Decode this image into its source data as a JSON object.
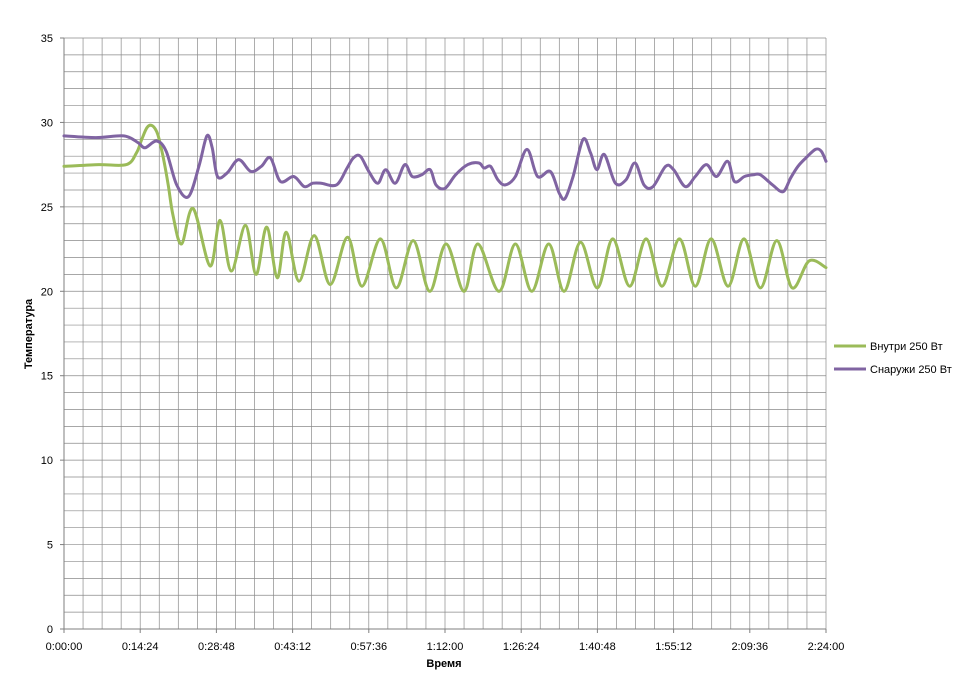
{
  "chart_data": {
    "type": "line",
    "xlabel": "Время",
    "ylabel": "Температура",
    "ylim": [
      0,
      35
    ],
    "yticks": [
      "0",
      "5",
      "10",
      "15",
      "20",
      "25",
      "30",
      "35"
    ],
    "xlim_minutes": [
      0,
      144
    ],
    "xticks": [
      "0:00:00",
      "0:14:24",
      "0:28:48",
      "0:43:12",
      "0:57:36",
      "1:12:00",
      "1:26:24",
      "1:40:48",
      "1:55:12",
      "2:09:36",
      "2:24:00"
    ],
    "grid": true,
    "legend_position": "right",
    "series": [
      {
        "name": "Внутри 250 Вт",
        "color": "#9bbb59",
        "x_minutes": [
          0,
          6.6,
          11.8,
          13.7,
          14.7,
          15.7,
          16.7,
          17.7,
          18.7,
          19.7,
          20.6,
          22.2,
          24.4,
          27.6,
          29.5,
          31.6,
          34.3,
          36.3,
          38.3,
          40.3,
          42.0,
          44.4,
          47.3,
          50.3,
          53.6,
          56.3,
          59.8,
          62.8,
          66.0,
          69.1,
          72.2,
          75.6,
          78.2,
          82.2,
          85.3,
          88.4,
          91.6,
          94.5,
          97.6,
          100.8,
          103.7,
          106.9,
          110.0,
          113.0,
          116.3,
          119.3,
          122.3,
          125.5,
          128.5,
          131.6,
          134.7,
          137.6,
          140.8,
          144
        ],
        "values": [
          27.4,
          27.5,
          27.5,
          28.2,
          29.0,
          29.7,
          29.8,
          29.3,
          28.0,
          26.3,
          24.5,
          22.8,
          24.9,
          21.5,
          24.2,
          21.2,
          23.9,
          21.0,
          23.8,
          20.8,
          23.5,
          20.6,
          23.3,
          20.4,
          23.2,
          20.3,
          23.1,
          20.2,
          23.0,
          20.0,
          22.8,
          20.0,
          22.8,
          20.0,
          22.8,
          20.0,
          22.8,
          20.0,
          22.9,
          20.2,
          23.1,
          20.3,
          23.1,
          20.3,
          23.1,
          20.3,
          23.1,
          20.3,
          23.1,
          20.2,
          23.0,
          20.2,
          21.8,
          21.4
        ]
      },
      {
        "name": "Снаружи 250 Вт",
        "color": "#8064a2",
        "x_minutes": [
          0,
          6.0,
          11.3,
          14.0,
          15.3,
          17.5,
          19.3,
          21.3,
          23.5,
          25.5,
          27.0,
          28.0,
          29.0,
          30.8,
          33.0,
          35.3,
          37.3,
          39.0,
          40.9,
          43.4,
          45.4,
          47.0,
          48.6,
          51.5,
          53.5,
          54.7,
          56.0,
          57.6,
          59.3,
          60.8,
          62.6,
          64.4,
          65.8,
          67.6,
          69.2,
          70.3,
          72.0,
          74.0,
          76.3,
          78.4,
          79.4,
          80.6,
          82.0,
          83.4,
          85.3,
          87.5,
          89.5,
          91.9,
          93.6,
          94.7,
          96.2,
          98.1,
          99.5,
          100.7,
          102.1,
          104.2,
          106.2,
          107.9,
          109.6,
          111.3,
          113.7,
          115.2,
          117.4,
          119.3,
          121.4,
          123.3,
          125.4,
          126.7,
          128.6,
          130.3,
          131.6,
          133.9,
          135.9,
          137.3,
          138.7,
          140.2,
          142.0,
          143.1,
          144
        ],
        "values": [
          29.2,
          29.1,
          29.2,
          28.8,
          28.5,
          28.9,
          28.3,
          26.3,
          25.6,
          27.4,
          29.2,
          28.5,
          26.8,
          27.0,
          27.8,
          27.1,
          27.4,
          27.9,
          26.5,
          26.8,
          26.2,
          26.4,
          26.4,
          26.3,
          27.3,
          27.9,
          28.0,
          27.1,
          26.4,
          27.2,
          26.4,
          27.5,
          26.8,
          26.9,
          27.2,
          26.3,
          26.1,
          26.9,
          27.5,
          27.6,
          27.3,
          27.4,
          26.6,
          26.3,
          26.8,
          28.4,
          26.8,
          27.1,
          25.8,
          25.5,
          26.8,
          29.0,
          28.2,
          27.2,
          28.1,
          26.4,
          26.6,
          27.6,
          26.3,
          26.2,
          27.4,
          27.2,
          26.2,
          26.8,
          27.5,
          26.8,
          27.7,
          26.5,
          26.8,
          26.9,
          26.9,
          26.3,
          25.9,
          26.7,
          27.4,
          27.9,
          28.4,
          28.3,
          27.7
        ]
      }
    ]
  }
}
